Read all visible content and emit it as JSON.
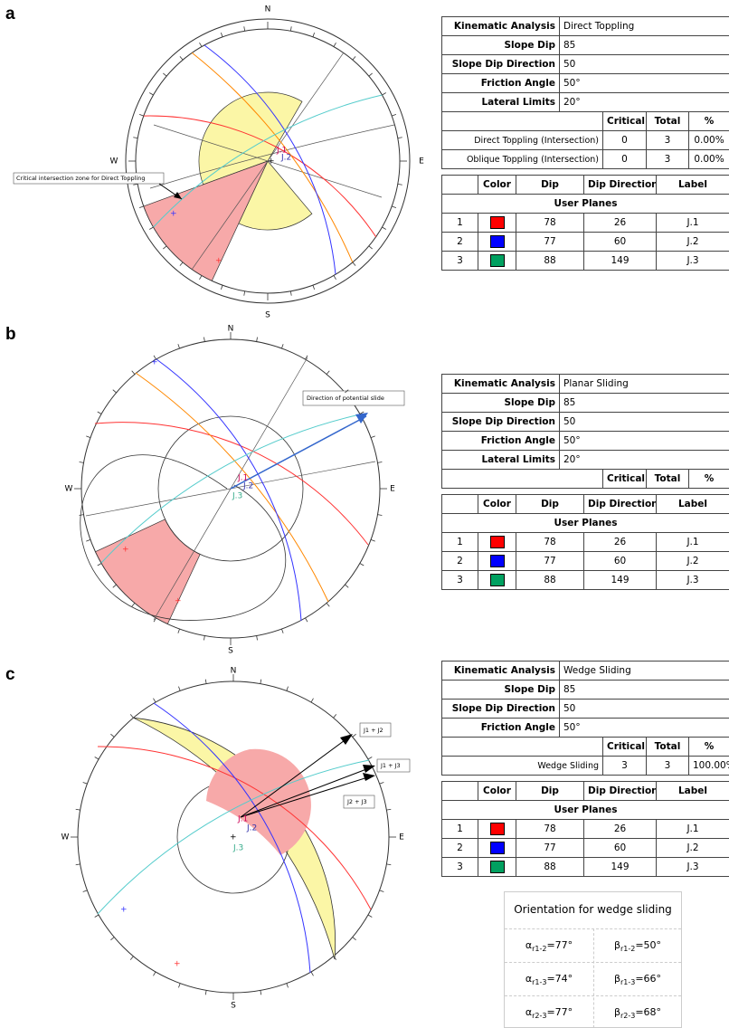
{
  "panels": [
    {
      "label": "a",
      "north": "N",
      "east": "E",
      "south": "S",
      "west": "W",
      "annotations": [
        "Critical intersection zone for Direct Toppling"
      ],
      "plane_labels": [
        "J.1",
        "J.2"
      ],
      "table": {
        "info": [
          [
            "Kinematic Analysis",
            "Direct Toppling"
          ],
          [
            "Slope Dip",
            "85"
          ],
          [
            "Slope Dip Direction",
            "50"
          ],
          [
            "Friction Angle",
            "50°"
          ],
          [
            "Lateral Limits",
            "20°"
          ]
        ],
        "results_header": [
          "Critical",
          "Total",
          "%"
        ],
        "results": [
          [
            "Direct Toppling (Intersection)",
            "0",
            "3",
            "0.00%"
          ],
          [
            "Oblique Toppling (Intersection)",
            "0",
            "3",
            "0.00%"
          ]
        ],
        "planes_header": [
          "Color",
          "Dip",
          "Dip Direction",
          "Label"
        ],
        "planes_title": "User Planes",
        "planes": [
          {
            "index": "1",
            "color": "#ff0000",
            "dip": "78",
            "dip_direction": "26",
            "label": "J.1"
          },
          {
            "index": "2",
            "color": "#0000ff",
            "dip": "77",
            "dip_direction": "60",
            "label": "J.2"
          },
          {
            "index": "3",
            "color": "#00a060",
            "dip": "88",
            "dip_direction": "149",
            "label": "J.3"
          }
        ]
      }
    },
    {
      "label": "b",
      "north": "N",
      "east": "E",
      "south": "S",
      "west": "W",
      "annotations": [
        "Direction of potential slide"
      ],
      "plane_labels": [
        "J.1",
        "J.2",
        "J.3"
      ],
      "table": {
        "info": [
          [
            "Kinematic Analysis",
            "Planar Sliding"
          ],
          [
            "Slope Dip",
            "85"
          ],
          [
            "Slope Dip Direction",
            "50"
          ],
          [
            "Friction Angle",
            "50°"
          ],
          [
            "Lateral Limits",
            "20°"
          ]
        ],
        "results_header": [
          "Critical",
          "Total",
          "%"
        ],
        "results": [],
        "planes_header": [
          "Color",
          "Dip",
          "Dip Direction",
          "Label"
        ],
        "planes_title": "User Planes",
        "planes": [
          {
            "index": "1",
            "color": "#ff0000",
            "dip": "78",
            "dip_direction": "26",
            "label": "J.1"
          },
          {
            "index": "2",
            "color": "#0000ff",
            "dip": "77",
            "dip_direction": "60",
            "label": "J.2"
          },
          {
            "index": "3",
            "color": "#00a060",
            "dip": "88",
            "dip_direction": "149",
            "label": "J.3"
          }
        ]
      }
    },
    {
      "label": "c",
      "north": "N",
      "east": "E",
      "south": "S",
      "west": "W",
      "annotations": [
        "J1 + J2",
        "J1 + J3",
        "J2 + J3"
      ],
      "plane_labels": [
        "J.1",
        "J.2",
        "J.3"
      ],
      "table": {
        "info": [
          [
            "Kinematic Analysis",
            "Wedge Sliding"
          ],
          [
            "Slope Dip",
            "85"
          ],
          [
            "Slope Dip Direction",
            "50"
          ],
          [
            "Friction Angle",
            "50°"
          ]
        ],
        "results_header": [
          "Critical",
          "Total",
          "%"
        ],
        "results": [
          [
            "Wedge Sliding",
            "3",
            "3",
            "100.00%"
          ]
        ],
        "planes_header": [
          "Color",
          "Dip",
          "Dip Direction",
          "Label"
        ],
        "planes_title": "User Planes",
        "planes": [
          {
            "index": "1",
            "color": "#ff0000",
            "dip": "78",
            "dip_direction": "26",
            "label": "J.1"
          },
          {
            "index": "2",
            "color": "#0000ff",
            "dip": "77",
            "dip_direction": "60",
            "label": "J.2"
          },
          {
            "index": "3",
            "color": "#00a060",
            "dip": "88",
            "dip_direction": "149",
            "label": "J.3"
          }
        ]
      }
    }
  ],
  "wedge_orientation": {
    "title": "Orientation for wedge sliding",
    "cells": [
      [
        {
          "symbol": "α",
          "sub": "r1-2",
          "value": "=77°"
        },
        {
          "symbol": "β",
          "sub": "r1-2",
          "value": "=50°"
        }
      ],
      [
        {
          "symbol": "α",
          "sub": "r1-3",
          "value": "=74°"
        },
        {
          "symbol": "β",
          "sub": "r1-3",
          "value": "=66°"
        }
      ],
      [
        {
          "symbol": "α",
          "sub": "r2-3",
          "value": "=77°"
        },
        {
          "symbol": "β",
          "sub": "r2-3",
          "value": "=68°"
        }
      ]
    ]
  }
}
